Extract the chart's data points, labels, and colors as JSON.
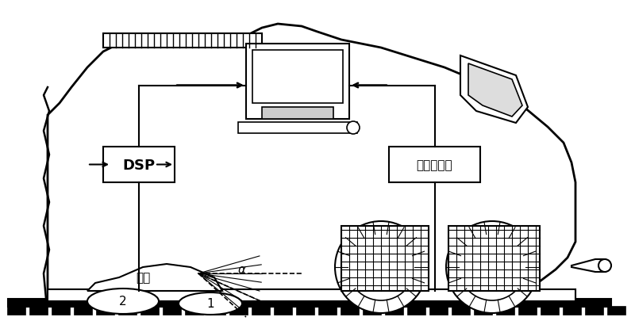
{
  "figure_width": 8.0,
  "figure_height": 4.06,
  "dpi": 100,
  "background_color": "#ffffff",
  "line_color": "#000000",
  "title": "",
  "labels": {
    "dsp": "DSP",
    "photometer": "光电测速仪",
    "radar": "雷达",
    "alpha": "α",
    "num1": "1",
    "num2": "2"
  }
}
